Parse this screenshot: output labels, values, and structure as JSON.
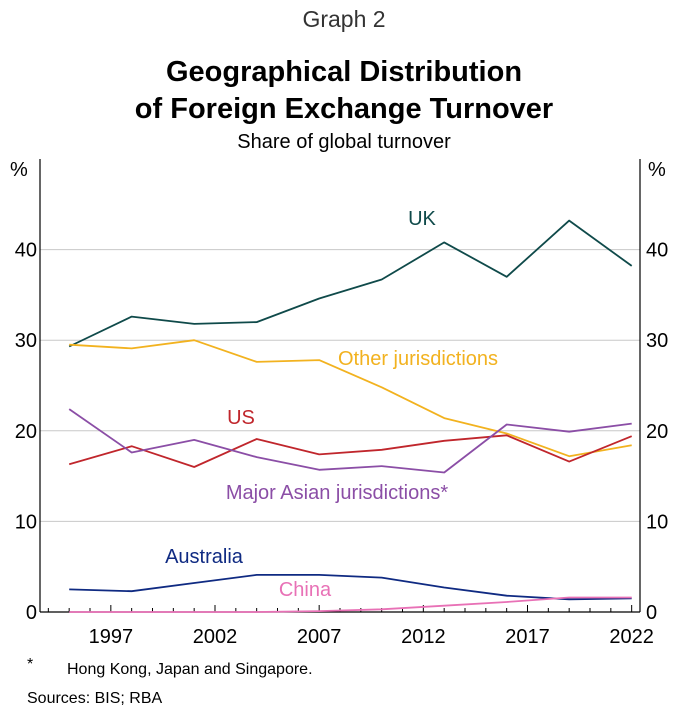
{
  "header": {
    "graph_label": "Graph 2",
    "title_line1": "Geographical Distribution",
    "title_line2": "of Foreign Exchange Turnover",
    "subtitle": "Share of global turnover"
  },
  "footer": {
    "footnote_mark": "*",
    "footnote_text": "Hong Kong, Japan and Singapore.",
    "sources": "Sources: BIS; RBA"
  },
  "chart_data": {
    "type": "line",
    "y_unit_left": "%",
    "y_unit_right": "%",
    "ylim": [
      0,
      50
    ],
    "yticks": [
      0,
      10,
      20,
      30,
      40
    ],
    "xlim": [
      1993.6,
      2022.4
    ],
    "xticks": [
      1997,
      2002,
      2007,
      2012,
      2017,
      2022
    ],
    "grid": true,
    "x": [
      1995,
      1998,
      2001,
      2004,
      2007,
      2010,
      2013,
      2016,
      2019,
      2022
    ],
    "series": [
      {
        "name": "UK",
        "color": "#0f4a4a",
        "values": [
          29.3,
          32.6,
          31.8,
          32.0,
          34.6,
          36.7,
          40.8,
          37.0,
          43.2,
          38.2
        ]
      },
      {
        "name": "Other jurisdictions",
        "color": "#f2b21f",
        "values": [
          29.5,
          29.1,
          30.0,
          27.6,
          27.8,
          24.8,
          21.4,
          19.7,
          17.2,
          18.4
        ]
      },
      {
        "name": "US",
        "color": "#c0262c",
        "values": [
          16.3,
          18.3,
          16.0,
          19.1,
          17.4,
          17.9,
          18.9,
          19.5,
          16.6,
          19.4
        ]
      },
      {
        "name": "Major Asian jurisdictions*",
        "color": "#8b4ea6",
        "values": [
          22.4,
          17.6,
          19.0,
          17.1,
          15.7,
          16.1,
          15.4,
          20.7,
          19.9,
          20.8
        ]
      },
      {
        "name": "Australia",
        "color": "#0f2a82",
        "values": [
          2.5,
          2.3,
          3.2,
          4.1,
          4.1,
          3.8,
          2.7,
          1.8,
          1.4,
          1.5
        ]
      },
      {
        "name": "China",
        "color": "#e871b6",
        "values": [
          0.0,
          0.0,
          0.0,
          0.0,
          0.1,
          0.3,
          0.7,
          1.1,
          1.6,
          1.6
        ]
      }
    ]
  }
}
